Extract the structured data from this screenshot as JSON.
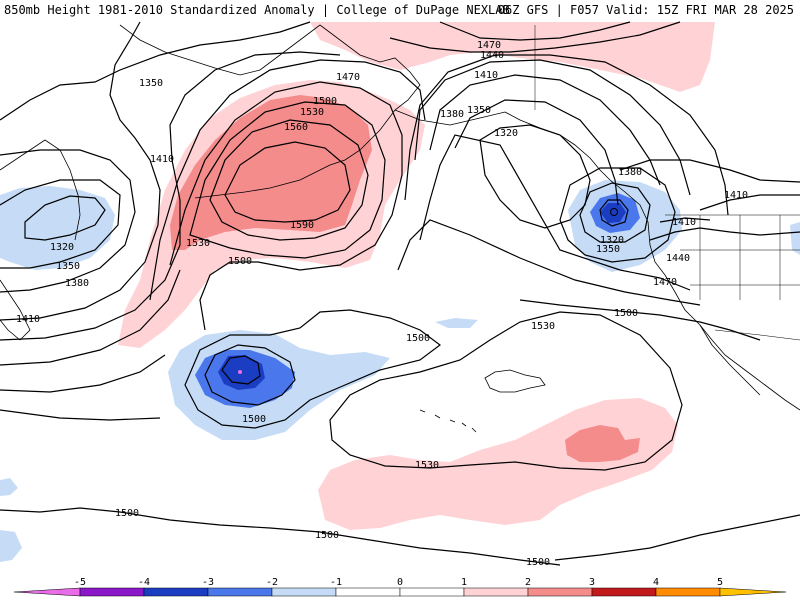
{
  "header": {
    "left": "850mb Height 1981-2010 Standardized Anomaly | College of DuPage NEXLAB",
    "right": "06Z GFS | F057 Valid: 15Z FRI MAR 28 2025"
  },
  "colors": {
    "neg5": "#e86de8",
    "neg4": "#8a17c9",
    "neg3": "#1a3dc2",
    "neg2": "#4a78ec",
    "neg1": "#c6dcf6",
    "pos1": "#ffd3d6",
    "pos2": "#f58c8c",
    "pos3": "#c21a1a",
    "pos4": "#ff8c00",
    "pos5": "#ffc000",
    "contour": "#000000",
    "coast": "#000000"
  },
  "contour_labels": {
    "l1350a": "1350",
    "l1410a": "1410",
    "l1320a": "1320",
    "l1350b": "1350",
    "l1380a": "1380",
    "l1410b": "1410",
    "l1470a": "1470",
    "l1500a": "1500",
    "l1530a": "1530",
    "l1560a": "1560",
    "l1590a": "1590",
    "l1530b": "1530",
    "l1500b": "1500",
    "l1470b": "1470",
    "l1440a": "1440",
    "l1410c": "1410",
    "l1380b": "1380",
    "l1350c": "1350",
    "l1320b": "1320",
    "l1380c": "1380",
    "l1320c": "1320",
    "l1350d": "1350",
    "l1440b": "1440",
    "l1410d": "1410",
    "l1410e": "1410",
    "l1470c": "1470",
    "l1500c": "1500",
    "l1530c": "1530",
    "l1500d": "1500",
    "l1500e": "1500",
    "l1530d": "1530",
    "l1500f": "1500",
    "l1500g": "1500",
    "l1500h": "1500"
  },
  "colorbar": {
    "ticks": [
      "-5",
      "-4",
      "-3",
      "-2",
      "-1",
      "0",
      "1",
      "2",
      "3",
      "4",
      "5"
    ]
  }
}
